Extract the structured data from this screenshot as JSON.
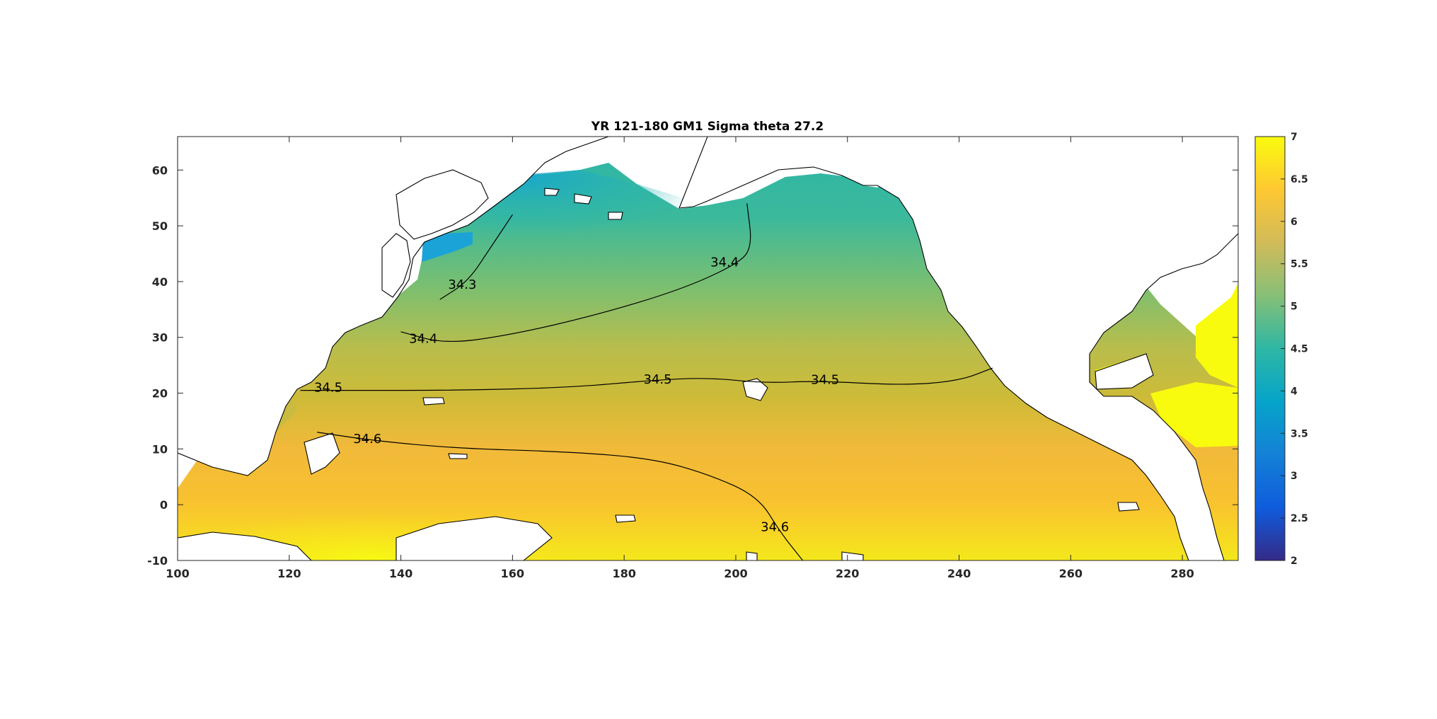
{
  "chart_data": {
    "type": "heatmap",
    "title": "YR 121-180 GM1 Sigma theta 27.2",
    "xlabel": "",
    "ylabel": "",
    "xlim": [
      100,
      290
    ],
    "ylim": [
      -10,
      66
    ],
    "xticks": [
      100,
      120,
      140,
      160,
      180,
      200,
      220,
      240,
      260,
      280
    ],
    "yticks": [
      -10,
      0,
      10,
      20,
      30,
      40,
      50,
      60
    ],
    "colorbar": {
      "range": [
        2,
        7
      ],
      "ticks": [
        2,
        2.5,
        3,
        3.5,
        4,
        4.5,
        5,
        5.5,
        6,
        6.5,
        7
      ],
      "colormap": "parula",
      "stops": [
        "#352a87",
        "#0f5cdd",
        "#1481d6",
        "#06a4ca",
        "#2eb7a4",
        "#87bf77",
        "#d1bb59",
        "#fec832",
        "#f9fb0e"
      ]
    },
    "contours": [
      {
        "level": "34.3",
        "points": [
          [
            147,
            36.8
          ],
          [
            152,
            40
          ],
          [
            156,
            46
          ],
          [
            160,
            52
          ]
        ]
      },
      {
        "level": "34.4",
        "points": [
          [
            140,
            31
          ],
          [
            148,
            28.8
          ],
          [
            160,
            30.5
          ],
          [
            175,
            34
          ],
          [
            190,
            38.5
          ],
          [
            200,
            43
          ],
          [
            203,
            46
          ],
          [
            202,
            54
          ]
        ]
      },
      {
        "level": "34.5",
        "points": [
          [
            122,
            20.5
          ],
          [
            130,
            20.5
          ],
          [
            150,
            20.5
          ],
          [
            170,
            21
          ],
          [
            185,
            22.3
          ],
          [
            195,
            22.8
          ],
          [
            205,
            21.8
          ],
          [
            215,
            22.2
          ],
          [
            230,
            21.4
          ],
          [
            240,
            22.2
          ],
          [
            246,
            24.5
          ]
        ]
      },
      {
        "level": "34.6",
        "points": [
          [
            125,
            13
          ],
          [
            135,
            11.5
          ],
          [
            150,
            10.1
          ],
          [
            170,
            9.5
          ],
          [
            185,
            8.3
          ],
          [
            195,
            5.5
          ],
          [
            204,
            1.5
          ],
          [
            208,
            -5
          ],
          [
            212,
            -10
          ]
        ]
      }
    ],
    "contour_labels": [
      {
        "text": "34.3",
        "lon": 151,
        "lat": 39.5
      },
      {
        "text": "34.4",
        "lon": 144,
        "lat": 29.8
      },
      {
        "text": "34.4",
        "lon": 198,
        "lat": 43.5
      },
      {
        "text": "34.5",
        "lon": 127,
        "lat": 21
      },
      {
        "text": "34.5",
        "lon": 186,
        "lat": 22.5
      },
      {
        "text": "34.5",
        "lon": 216,
        "lat": 22.4
      },
      {
        "text": "34.6",
        "lon": 134,
        "lat": 11.8
      },
      {
        "text": "34.6",
        "lon": 207,
        "lat": -4
      }
    ]
  }
}
